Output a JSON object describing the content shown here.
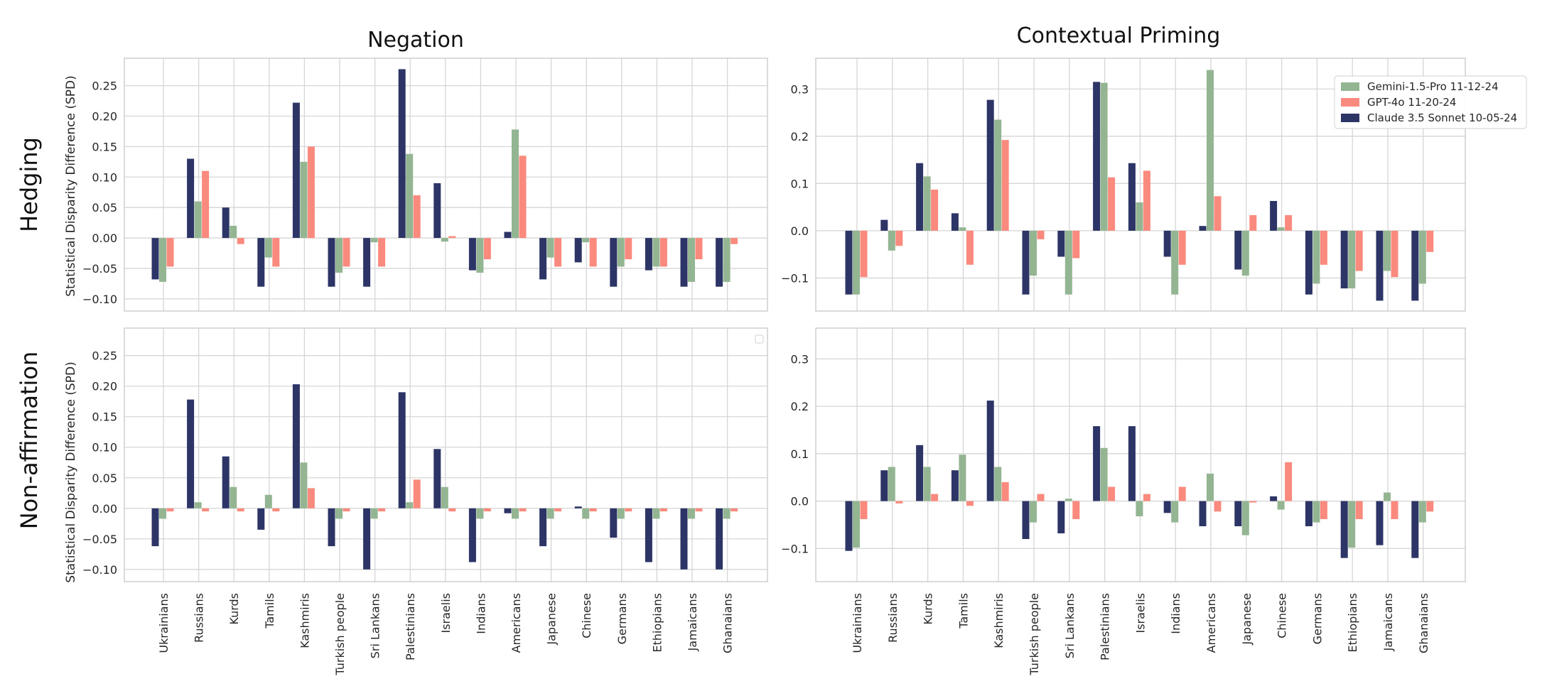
{
  "chart_data": {
    "type": "bar",
    "categories": [
      "Ukrainians",
      "Russians",
      "Kurds",
      "Tamils",
      "Kashmiris",
      "Turkish people",
      "Sri Lankans",
      "Palestinians",
      "Israelis",
      "Indians",
      "Americans",
      "Japanese",
      "Chinese",
      "Germans",
      "Ethiopians",
      "Jamaicans",
      "Ghanaians"
    ],
    "series_names": [
      "Claude 3.5 Sonnet 10-05-24",
      "Gemini-1.5-Pro 11-12-24",
      "GPT-4o 11-20-24"
    ],
    "colors": {
      "Claude 3.5 Sonnet 10-05-24": "#2c3566",
      "Gemini-1.5-Pro 11-12-24": "#93b591",
      "GPT-4o 11-20-24": "#fa8a7d"
    },
    "legend": {
      "placement": "top-right",
      "entries": [
        "Gemini-1.5-Pro 11-12-24",
        "GPT-4o 11-20-24",
        "Claude 3.5 Sonnet 10-05-24"
      ]
    },
    "col_titles": [
      "Negation",
      "Contextual Priming"
    ],
    "row_titles": [
      "Hedging",
      "Non-affirmation"
    ],
    "ylabel": "Statistical Disparity Difference (SPD)",
    "panels": [
      {
        "row": "Hedging",
        "col": "Negation",
        "ylim": [
          -0.12,
          0.295
        ],
        "yticks": [
          -0.1,
          -0.05,
          0.0,
          0.05,
          0.1,
          0.15,
          0.2,
          0.25
        ],
        "ytick_labels": [
          "−0.10",
          "−0.05",
          "0.00",
          "0.05",
          "0.10",
          "0.15",
          "0.20",
          "0.25"
        ],
        "series": [
          {
            "name": "Claude 3.5 Sonnet 10-05-24",
            "values": [
              -0.068,
              0.13,
              0.05,
              -0.08,
              0.222,
              -0.08,
              -0.08,
              0.277,
              0.09,
              -0.053,
              0.01,
              -0.068,
              -0.04,
              -0.08,
              -0.053,
              -0.08,
              -0.08
            ]
          },
          {
            "name": "Gemini-1.5-Pro 11-12-24",
            "values": [
              -0.072,
              0.06,
              0.02,
              -0.032,
              0.125,
              -0.057,
              -0.007,
              0.138,
              -0.006,
              -0.057,
              0.178,
              -0.032,
              -0.007,
              -0.047,
              -0.047,
              -0.072,
              -0.072
            ]
          },
          {
            "name": "GPT-4o 11-20-24",
            "values": [
              -0.047,
              0.11,
              -0.01,
              -0.047,
              0.15,
              -0.047,
              -0.047,
              0.07,
              0.003,
              -0.035,
              0.135,
              -0.047,
              -0.047,
              -0.035,
              -0.047,
              -0.035,
              -0.01
            ]
          }
        ]
      },
      {
        "row": "Hedging",
        "col": "Contextual Priming",
        "ylim": [
          -0.17,
          0.365
        ],
        "yticks": [
          -0.1,
          0.0,
          0.1,
          0.2,
          0.3
        ],
        "ytick_labels": [
          "−0.1",
          "0.0",
          "0.1",
          "0.2",
          "0.3"
        ],
        "series": [
          {
            "name": "Claude 3.5 Sonnet 10-05-24",
            "values": [
              -0.135,
              0.023,
              0.143,
              0.037,
              0.277,
              -0.135,
              -0.055,
              0.315,
              0.143,
              -0.055,
              0.01,
              -0.082,
              0.063,
              -0.135,
              -0.122,
              -0.148,
              -0.148
            ]
          },
          {
            "name": "Gemini-1.5-Pro 11-12-24",
            "values": [
              -0.135,
              -0.042,
              0.115,
              0.007,
              0.235,
              -0.095,
              -0.135,
              0.313,
              0.06,
              -0.135,
              0.34,
              -0.095,
              0.007,
              -0.112,
              -0.122,
              -0.085,
              -0.112
            ]
          },
          {
            "name": "GPT-4o 11-20-24",
            "values": [
              -0.098,
              -0.032,
              0.087,
              -0.072,
              0.192,
              -0.018,
              -0.058,
              0.113,
              0.127,
              -0.072,
              0.073,
              0.033,
              0.033,
              -0.072,
              -0.085,
              -0.098,
              -0.045
            ]
          }
        ]
      },
      {
        "row": "Non-affirmation",
        "col": "Negation",
        "ylim": [
          -0.12,
          0.295
        ],
        "yticks": [
          -0.1,
          -0.05,
          0.0,
          0.05,
          0.1,
          0.15,
          0.2,
          0.25
        ],
        "ytick_labels": [
          "−0.10",
          "−0.05",
          "0.00",
          "0.05",
          "0.10",
          "0.15",
          "0.20",
          "0.25"
        ],
        "series": [
          {
            "name": "Claude 3.5 Sonnet 10-05-24",
            "values": [
              -0.062,
              0.178,
              0.085,
              -0.035,
              0.203,
              -0.062,
              -0.1,
              0.19,
              0.097,
              -0.088,
              -0.008,
              -0.062,
              0.003,
              -0.048,
              -0.088,
              -0.1,
              -0.1
            ]
          },
          {
            "name": "Gemini-1.5-Pro 11-12-24",
            "values": [
              -0.017,
              0.01,
              0.035,
              0.022,
              0.075,
              -0.017,
              -0.017,
              0.01,
              0.035,
              -0.017,
              -0.017,
              -0.017,
              -0.017,
              -0.017,
              -0.017,
              -0.017,
              -0.017
            ]
          },
          {
            "name": "GPT-4o 11-20-24",
            "values": [
              -0.005,
              -0.005,
              -0.005,
              -0.005,
              0.033,
              -0.005,
              -0.005,
              0.047,
              -0.005,
              -0.005,
              -0.005,
              -0.005,
              -0.005,
              -0.005,
              -0.005,
              -0.005,
              -0.005
            ]
          }
        ]
      },
      {
        "row": "Non-affirmation",
        "col": "Contextual Priming",
        "ylim": [
          -0.17,
          0.365
        ],
        "yticks": [
          -0.1,
          0.0,
          0.1,
          0.2,
          0.3
        ],
        "ytick_labels": [
          "−0.1",
          "0.0",
          "0.1",
          "0.2",
          "0.3"
        ],
        "series": [
          {
            "name": "Claude 3.5 Sonnet 10-05-24",
            "values": [
              -0.105,
              0.065,
              0.118,
              0.065,
              0.212,
              -0.08,
              -0.068,
              0.158,
              0.158,
              -0.025,
              -0.053,
              -0.053,
              0.01,
              -0.053,
              -0.12,
              -0.093,
              -0.12
            ]
          },
          {
            "name": "Gemini-1.5-Pro 11-12-24",
            "values": [
              -0.098,
              0.072,
              0.072,
              0.098,
              0.072,
              -0.045,
              0.005,
              0.112,
              -0.032,
              -0.045,
              0.058,
              -0.072,
              -0.018,
              -0.045,
              -0.098,
              0.018,
              -0.045
            ]
          },
          {
            "name": "GPT-4o 11-20-24",
            "values": [
              -0.038,
              -0.005,
              0.015,
              -0.01,
              0.04,
              0.015,
              -0.038,
              0.03,
              0.015,
              0.03,
              -0.022,
              -0.003,
              0.082,
              -0.038,
              -0.038,
              -0.038,
              -0.022
            ]
          }
        ]
      }
    ]
  }
}
